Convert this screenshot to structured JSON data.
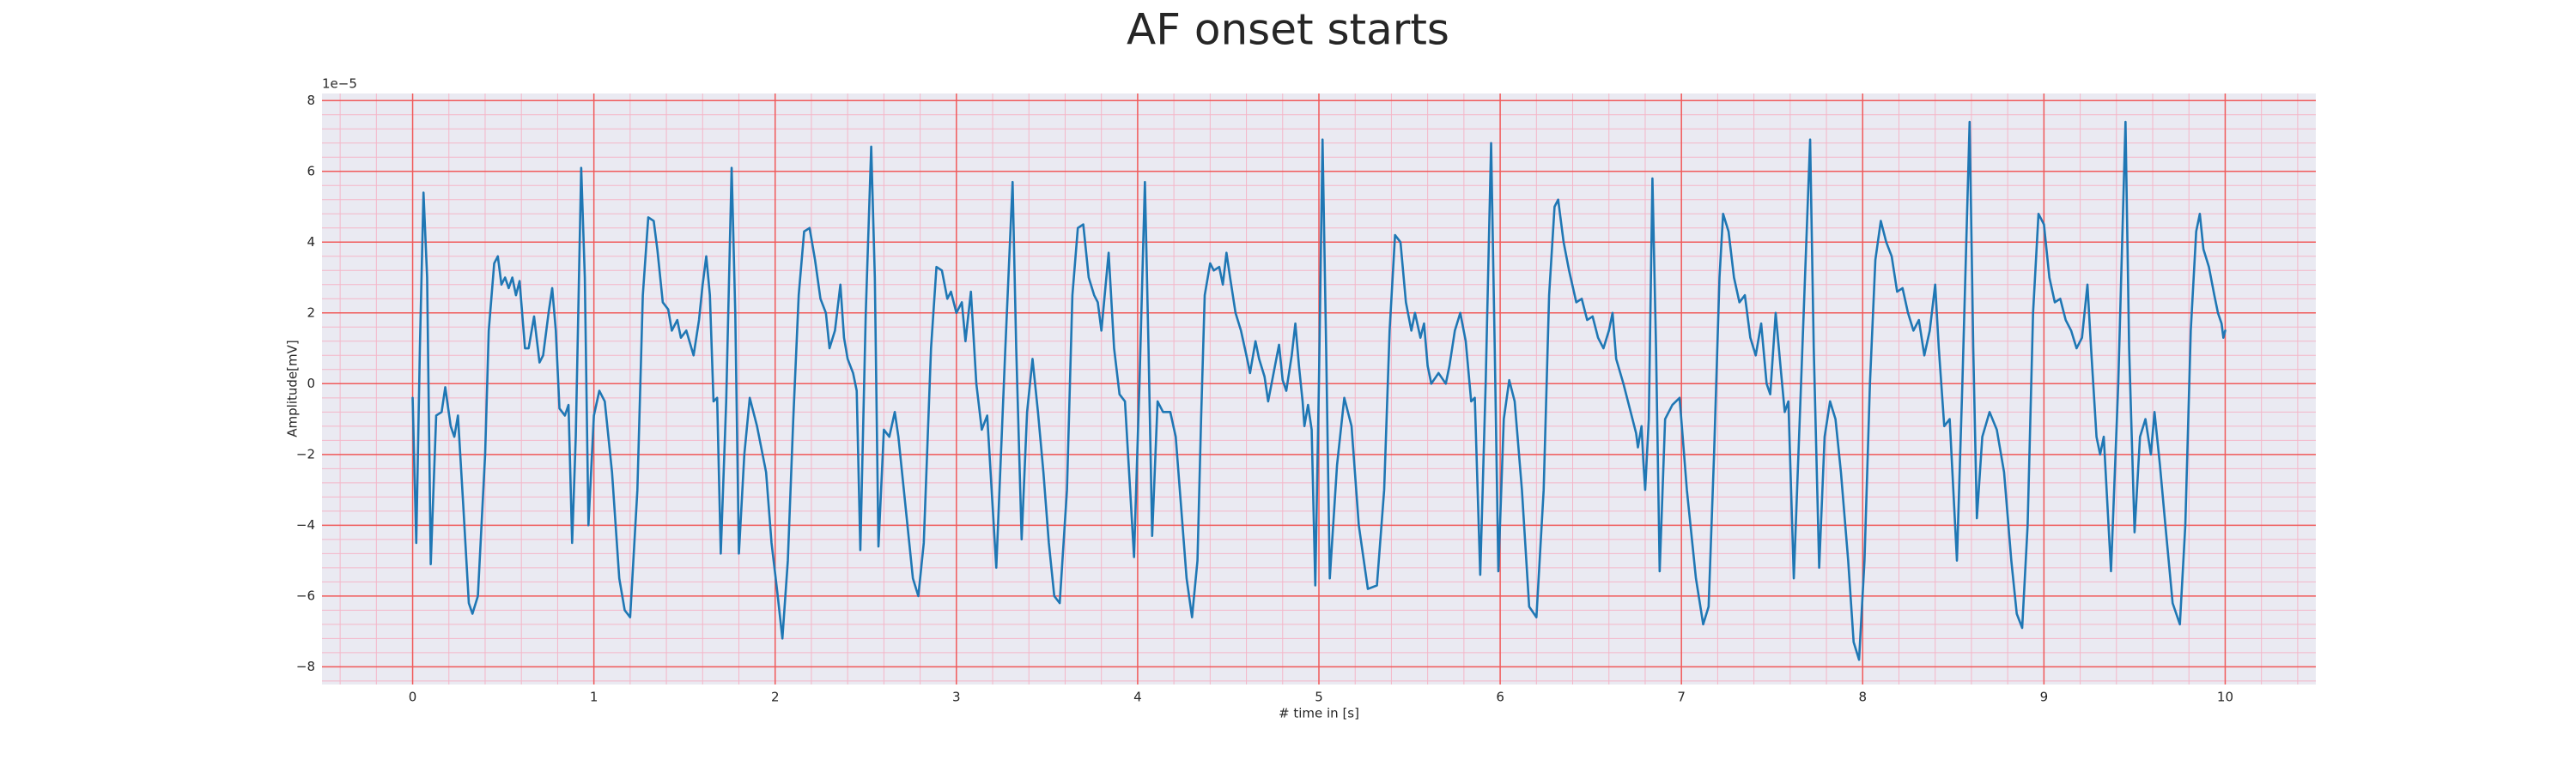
{
  "chart_data": {
    "type": "line",
    "title": "AF onset starts",
    "xlabel": "# time in [s]",
    "ylabel": "Amplitude[mV]",
    "offset_text": "1e−5",
    "color": "#1f77b4",
    "grid": true,
    "minor_grid": true,
    "xlim": [
      -0.5,
      10.5
    ],
    "ylim": [
      -8.5,
      8.2
    ],
    "xticks": [
      0,
      1,
      2,
      3,
      4,
      5,
      6,
      7,
      8,
      9,
      10
    ],
    "yticks": [
      {
        "value": -8,
        "label": "−8"
      },
      {
        "value": -6,
        "label": "−6"
      },
      {
        "value": -4,
        "label": "−4"
      },
      {
        "value": -2,
        "label": "−2"
      },
      0,
      2,
      4,
      6,
      8
    ],
    "x": [
      0,
      0.02,
      0.04,
      0.06,
      0.08,
      0.1,
      0.13,
      0.16,
      0.18,
      0.21,
      0.23,
      0.25,
      0.28,
      0.31,
      0.33,
      0.36,
      0.4,
      0.42,
      0.45,
      0.47,
      0.49,
      0.51,
      0.53,
      0.55,
      0.57,
      0.59,
      0.62,
      0.64,
      0.67,
      0.7,
      0.72,
      0.75,
      0.77,
      0.79,
      0.81,
      0.84,
      0.86,
      0.88,
      0.9,
      0.93,
      0.95,
      0.97,
      1.0,
      1.03,
      1.06,
      1.1,
      1.14,
      1.17,
      1.2,
      1.24,
      1.27,
      1.3,
      1.33,
      1.35,
      1.38,
      1.41,
      1.43,
      1.46,
      1.48,
      1.51,
      1.55,
      1.58,
      1.6,
      1.62,
      1.64,
      1.66,
      1.68,
      1.7,
      1.73,
      1.76,
      1.78,
      1.8,
      1.83,
      1.86,
      1.9,
      1.95,
      1.98,
      2.01,
      2.04,
      2.07,
      2.1,
      2.13,
      2.16,
      2.19,
      2.22,
      2.25,
      2.28,
      2.3,
      2.33,
      2.36,
      2.38,
      2.4,
      2.43,
      2.45,
      2.47,
      2.5,
      2.53,
      2.55,
      2.57,
      2.6,
      2.63,
      2.66,
      2.68,
      2.72,
      2.76,
      2.79,
      2.82,
      2.86,
      2.89,
      2.92,
      2.95,
      2.97,
      3.0,
      3.03,
      3.05,
      3.08,
      3.11,
      3.14,
      3.17,
      3.22,
      3.27,
      3.31,
      3.33,
      3.36,
      3.39,
      3.42,
      3.45,
      3.48,
      3.51,
      3.54,
      3.57,
      3.61,
      3.64,
      3.67,
      3.7,
      3.73,
      3.76,
      3.78,
      3.8,
      3.84,
      3.87,
      3.9,
      3.93,
      3.98,
      4.01,
      4.04,
      4.06,
      4.08,
      4.11,
      4.14,
      4.18,
      4.21,
      4.24,
      4.27,
      4.3,
      4.33,
      4.35,
      4.37,
      4.4,
      4.42,
      4.45,
      4.47,
      4.49,
      4.51,
      4.54,
      4.57,
      4.6,
      4.62,
      4.65,
      4.67,
      4.7,
      4.72,
      4.75,
      4.78,
      4.8,
      4.82,
      4.85,
      4.87,
      4.89,
      4.91,
      4.92,
      4.94,
      4.96,
      4.98,
      5.0,
      5.02,
      5.04,
      5.06,
      5.1,
      5.14,
      5.18,
      5.22,
      5.27,
      5.32,
      5.36,
      5.39,
      5.42,
      5.45,
      5.48,
      5.51,
      5.53,
      5.56,
      5.58,
      5.6,
      5.62,
      5.66,
      5.7,
      5.72,
      5.75,
      5.78,
      5.81,
      5.84,
      5.86,
      5.89,
      5.92,
      5.95,
      5.97,
      5.99,
      6.02,
      6.05,
      6.08,
      6.12,
      6.16,
      6.2,
      6.24,
      6.27,
      6.3,
      6.32,
      6.35,
      6.38,
      6.42,
      6.45,
      6.48,
      6.51,
      6.54,
      6.57,
      6.6,
      6.62,
      6.64,
      6.68,
      6.72,
      6.75,
      6.76,
      6.78,
      6.79,
      6.8,
      6.82,
      6.84,
      6.86,
      6.88,
      6.91,
      6.95,
      6.99,
      7.03,
      7.08,
      7.12,
      7.15,
      7.18,
      7.21,
      7.23,
      7.26,
      7.29,
      7.32,
      7.35,
      7.38,
      7.41,
      7.44,
      7.47,
      7.49,
      7.52,
      7.55,
      7.57,
      7.59,
      7.62,
      7.66,
      7.71,
      7.73,
      7.76,
      7.79,
      7.82,
      7.85,
      7.88,
      7.92,
      7.95,
      7.98,
      8.01,
      8.04,
      8.07,
      8.1,
      8.13,
      8.16,
      8.19,
      8.22,
      8.25,
      8.28,
      8.31,
      8.34,
      8.37,
      8.4,
      8.42,
      8.45,
      8.48,
      8.52,
      8.55,
      8.59,
      8.61,
      8.63,
      8.66,
      8.7,
      8.74,
      8.78,
      8.82,
      8.85,
      8.88,
      8.91,
      8.94,
      8.97,
      9.0,
      9.03,
      9.06,
      9.09,
      9.12,
      9.15,
      9.18,
      9.21,
      9.24,
      9.26,
      9.29,
      9.31,
      9.33,
      9.37,
      9.41,
      9.45,
      9.47,
      9.5,
      9.53,
      9.56,
      9.59,
      9.61,
      9.64,
      9.67,
      9.71,
      9.75,
      9.78,
      9.81,
      9.84,
      9.86,
      9.88,
      9.91,
      9.94,
      9.96,
      9.98,
      9.99,
      10.0
    ],
    "values": [
      -0.4,
      -4.5,
      1,
      5.4,
      3,
      -5.1,
      -0.9,
      -0.8,
      -0.1,
      -1.2,
      -1.5,
      -0.9,
      -3.5,
      -6.2,
      -6.5,
      -6.0,
      -2,
      1.5,
      3.4,
      3.6,
      2.8,
      3.0,
      2.7,
      3.0,
      2.5,
      2.9,
      1.0,
      1.0,
      1.9,
      0.6,
      0.8,
      2.0,
      2.7,
      1.5,
      -0.7,
      -0.9,
      -0.6,
      -4.5,
      -1.5,
      6.1,
      3,
      -4.0,
      -0.9,
      -0.2,
      -0.5,
      -2.5,
      -5.5,
      -6.4,
      -6.6,
      -3,
      2.5,
      4.7,
      4.6,
      3.8,
      2.3,
      2.1,
      1.5,
      1.8,
      1.3,
      1.5,
      0.8,
      1.8,
      2.8,
      3.6,
      2.5,
      -0.5,
      -0.4,
      -4.8,
      -0.5,
      6.1,
      2,
      -4.8,
      -2,
      -0.4,
      -1.2,
      -2.5,
      -4.5,
      -5.8,
      -7.2,
      -5,
      -1,
      2.5,
      4.3,
      4.4,
      3.5,
      2.4,
      2.0,
      1.0,
      1.5,
      2.8,
      1.3,
      0.7,
      0.3,
      -0.2,
      -4.7,
      2,
      6.7,
      3,
      -4.6,
      -1.3,
      -1.5,
      -0.8,
      -1.5,
      -3.5,
      -5.5,
      -6.0,
      -4.5,
      1,
      3.3,
      3.2,
      2.4,
      2.6,
      2.0,
      2.3,
      1.2,
      2.6,
      0,
      -1.3,
      -0.9,
      -5.2,
      1,
      5.7,
      1,
      -4.4,
      -0.8,
      0.7,
      -0.8,
      -2.5,
      -4.5,
      -6.0,
      -6.2,
      -3,
      2.5,
      4.4,
      4.5,
      3.0,
      2.5,
      2.3,
      1.5,
      3.7,
      1,
      -0.3,
      -0.5,
      -4.9,
      0,
      5.7,
      1,
      -4.3,
      -0.5,
      -0.8,
      -0.8,
      -1.5,
      -3.5,
      -5.5,
      -6.6,
      -5,
      -1,
      2.5,
      3.4,
      3.2,
      3.3,
      2.8,
      3.7,
      3.0,
      2.0,
      1.5,
      0.8,
      0.3,
      1.2,
      0.7,
      0.2,
      -0.5,
      0.3,
      1.1,
      0.1,
      -0.2,
      0.8,
      1.7,
      0.5,
      -0.5,
      -1.2,
      -0.6,
      -1.3,
      -5.7,
      0,
      6.9,
      1,
      -5.5,
      -2.3,
      -0.4,
      -1.2,
      -4,
      -5.8,
      -5.7,
      -3,
      1.5,
      4.2,
      4.0,
      2.3,
      1.5,
      2.0,
      1.3,
      1.7,
      0.5,
      0.0,
      0.3,
      0.0,
      0.5,
      1.5,
      2.0,
      1.2,
      -0.5,
      -0.4,
      -5.4,
      0,
      6.8,
      1,
      -5.3,
      -1,
      0.1,
      -0.5,
      -3,
      -6.3,
      -6.6,
      -3,
      2.5,
      5.0,
      5.2,
      4,
      3.2,
      2.3,
      2.4,
      1.8,
      1.9,
      1.3,
      1.0,
      1.5,
      2.0,
      0.7,
      0.0,
      -0.8,
      -1.4,
      -1.8,
      -1.2,
      -2.2,
      -3,
      -1,
      5.8,
      1,
      -5.3,
      -1,
      -0.6,
      -0.4,
      -3,
      -5.5,
      -6.8,
      -6.3,
      -2,
      3.0,
      4.8,
      4.3,
      3.0,
      2.3,
      2.5,
      1.3,
      0.8,
      1.7,
      0.0,
      -0.3,
      2.0,
      0.3,
      -0.8,
      -0.5,
      -5.5,
      0,
      6.9,
      1,
      -5.2,
      -1.5,
      -0.5,
      -1.0,
      -2.5,
      -5,
      -7.3,
      -7.8,
      -5,
      0,
      3.5,
      4.6,
      4.0,
      3.6,
      2.6,
      2.7,
      2.0,
      1.5,
      1.8,
      0.8,
      1.5,
      2.8,
      1.0,
      -1.2,
      -1.0,
      -5.0,
      0,
      7.4,
      1,
      -3.8,
      -1.5,
      -0.8,
      -1.3,
      -2.5,
      -5,
      -6.5,
      -6.9,
      -4,
      2,
      4.8,
      4.5,
      3.0,
      2.3,
      2.4,
      1.8,
      1.5,
      1.0,
      1.3,
      2.8,
      1.0,
      -1.5,
      -2.0,
      -1.5,
      -5.3,
      0,
      7.4,
      1,
      -4.2,
      -1.5,
      -1.0,
      -2.0,
      -0.8,
      -2.3,
      -4,
      -6.2,
      -6.8,
      -4,
      1.5,
      4.3,
      4.8,
      3.8,
      3.3,
      2.5,
      2.0,
      1.7,
      1.3,
      1.5
    ]
  }
}
